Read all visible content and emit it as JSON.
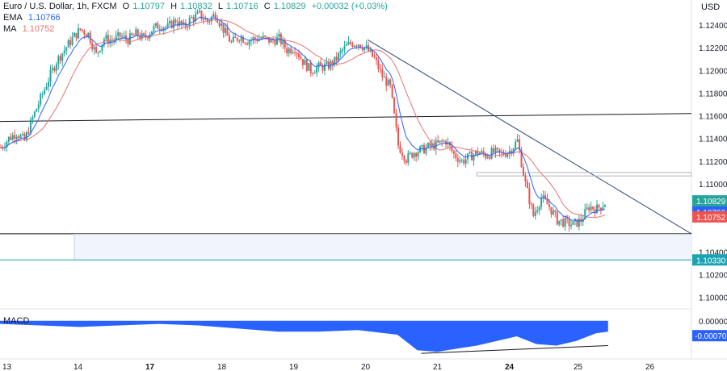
{
  "header": {
    "symbol": "Euro / U.S. Dollar, 1h, FXCM",
    "o_label": "O",
    "o_value": "1.10797",
    "h_label": "H",
    "h_value": "1.10832",
    "l_label": "L",
    "l_value": "1.10716",
    "c_label": "C",
    "c_value": "1.10829",
    "change": "+0.00032 (+0.03%)",
    "ema_label": "EMA",
    "ema_value": "1.10766",
    "ma_label": "MA",
    "ma_value": "1.10752"
  },
  "currency": "USD",
  "macd": {
    "label": "MACD",
    "value_tag": "-0.00070",
    "zero_tick": "0.00000"
  },
  "colors": {
    "up": "#26a69a",
    "down": "#ef5350",
    "ema": "#2962ff",
    "ma": "#e57373",
    "trend": "#2f4b7c",
    "hline": "#131722",
    "cyan": "#1aa3b3",
    "macd_fill": "#2962ff"
  },
  "chart_data": {
    "type": "candlestick",
    "timeframe": "1h",
    "ylim": [
      1.0992,
      1.1262
    ],
    "y_ticks": [
      "1.12400",
      "1.12200",
      "1.12000",
      "1.11800",
      "1.11600",
      "1.11400",
      "1.11200",
      "1.11000",
      "1.10400",
      "1.10200",
      "1.10000"
    ],
    "x_ticks": [
      "13",
      "14",
      "17",
      "18",
      "19",
      "20",
      "21",
      "24",
      "25",
      "26"
    ],
    "price_tags": [
      {
        "label": "1.10829",
        "kind": "last"
      },
      {
        "label": "1.10766",
        "kind": "ema"
      },
      {
        "label": "1.10752",
        "kind": "ma"
      },
      {
        "label": "1.10330",
        "kind": "level"
      }
    ],
    "close_path": [
      [
        0,
        1.1132
      ],
      [
        4,
        1.114
      ],
      [
        8,
        1.1145
      ],
      [
        12,
        1.1138
      ],
      [
        16,
        1.1158
      ],
      [
        20,
        1.1175
      ],
      [
        24,
        1.1192
      ],
      [
        28,
        1.1208
      ],
      [
        32,
        1.1218
      ],
      [
        36,
        1.1228
      ],
      [
        40,
        1.1236
      ],
      [
        44,
        1.1232
      ],
      [
        48,
        1.1214
      ],
      [
        52,
        1.1228
      ],
      [
        56,
        1.1226
      ],
      [
        60,
        1.123
      ],
      [
        64,
        1.1227
      ],
      [
        68,
        1.1232
      ],
      [
        72,
        1.1228
      ],
      [
        76,
        1.1236
      ],
      [
        80,
        1.124
      ],
      [
        84,
        1.1238
      ],
      [
        88,
        1.1244
      ],
      [
        92,
        1.1238
      ],
      [
        96,
        1.1246
      ],
      [
        100,
        1.1249
      ],
      [
        104,
        1.1243
      ],
      [
        108,
        1.125
      ],
      [
        112,
        1.1236
      ],
      [
        116,
        1.1224
      ],
      [
        120,
        1.123
      ],
      [
        124,
        1.1226
      ],
      [
        128,
        1.1228
      ],
      [
        132,
        1.1228
      ],
      [
        136,
        1.1226
      ],
      [
        140,
        1.1228
      ],
      [
        144,
        1.1218
      ],
      [
        148,
        1.122
      ],
      [
        152,
        1.1208
      ],
      [
        156,
        1.12
      ],
      [
        160,
        1.1203
      ],
      [
        164,
        1.1203
      ],
      [
        168,
        1.1208
      ],
      [
        172,
        1.1218
      ],
      [
        176,
        1.1224
      ],
      [
        180,
        1.1224
      ],
      [
        184,
        1.1219
      ],
      [
        188,
        1.121
      ],
      [
        192,
        1.1195
      ],
      [
        196,
        1.1185
      ],
      [
        200,
        1.1134
      ],
      [
        204,
        1.1122
      ],
      [
        208,
        1.1128
      ],
      [
        212,
        1.113
      ],
      [
        216,
        1.1133
      ],
      [
        220,
        1.1135
      ],
      [
        224,
        1.1138
      ],
      [
        228,
        1.1126
      ],
      [
        232,
        1.112
      ],
      [
        236,
        1.1124
      ],
      [
        240,
        1.1128
      ],
      [
        244,
        1.1125
      ],
      [
        248,
        1.1128
      ],
      [
        252,
        1.1126
      ],
      [
        256,
        1.1129
      ],
      [
        260,
        1.1138
      ],
      [
        264,
        1.11
      ],
      [
        268,
        1.1072
      ],
      [
        272,
        1.1088
      ],
      [
        276,
        1.108
      ],
      [
        280,
        1.1068
      ],
      [
        284,
        1.1066
      ],
      [
        288,
        1.1064
      ],
      [
        292,
        1.1068
      ],
      [
        296,
        1.108
      ],
      [
        300,
        1.1078
      ],
      [
        304,
        1.1083
      ]
    ],
    "ema": {
      "name": "EMA",
      "last": 1.10766
    },
    "ma": {
      "name": "MA",
      "last": 1.10752
    },
    "trendline": {
      "from": [
        185,
        1.1227
      ],
      "to": [
        340,
        1.1056
      ]
    },
    "horizontal_line": {
      "from": [
        0,
        1.1155
      ],
      "to": [
        340,
        1.1162
      ]
    },
    "support_level": 1.1056,
    "cyan_level": 1.1033,
    "macd_series": [
      [
        0,
        -0.0002
      ],
      [
        20,
        -0.0003
      ],
      [
        40,
        -0.0004
      ],
      [
        60,
        -0.0003
      ],
      [
        80,
        -0.0002
      ],
      [
        100,
        -0.0003
      ],
      [
        120,
        -0.0005
      ],
      [
        140,
        -0.0007
      ],
      [
        160,
        -0.0007
      ],
      [
        180,
        -0.0006
      ],
      [
        200,
        -0.0009
      ],
      [
        210,
        -0.0019
      ],
      [
        220,
        -0.002
      ],
      [
        230,
        -0.0018
      ],
      [
        240,
        -0.0016
      ],
      [
        250,
        -0.0013
      ],
      [
        260,
        -0.001
      ],
      [
        270,
        -0.0015
      ],
      [
        280,
        -0.0016
      ],
      [
        290,
        -0.0013
      ],
      [
        300,
        -0.0008
      ],
      [
        306,
        -0.0007
      ]
    ],
    "macd_ylim": [
      -0.0022,
      0.0003
    ]
  }
}
